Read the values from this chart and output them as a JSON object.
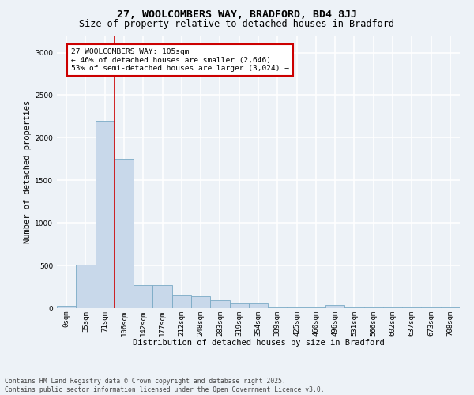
{
  "title": "27, WOOLCOMBERS WAY, BRADFORD, BD4 8JJ",
  "subtitle": "Size of property relative to detached houses in Bradford",
  "xlabel": "Distribution of detached houses by size in Bradford",
  "ylabel": "Number of detached properties",
  "bar_color": "#c8d8ea",
  "bar_edge_color": "#7aaac5",
  "categories": [
    "0sqm",
    "35sqm",
    "71sqm",
    "106sqm",
    "142sqm",
    "177sqm",
    "212sqm",
    "248sqm",
    "283sqm",
    "319sqm",
    "354sqm",
    "389sqm",
    "425sqm",
    "460sqm",
    "496sqm",
    "531sqm",
    "566sqm",
    "602sqm",
    "637sqm",
    "673sqm",
    "708sqm"
  ],
  "values": [
    28,
    510,
    2200,
    1750,
    270,
    265,
    150,
    140,
    90,
    60,
    52,
    5,
    5,
    5,
    38,
    5,
    5,
    5,
    5,
    5,
    5
  ],
  "ylim": [
    0,
    3200
  ],
  "yticks": [
    0,
    500,
    1000,
    1500,
    2000,
    2500,
    3000
  ],
  "property_line_x": 2.5,
  "annotation_text": "27 WOOLCOMBERS WAY: 105sqm\n← 46% of detached houses are smaller (2,646)\n53% of semi-detached houses are larger (3,024) →",
  "annotation_box_facecolor": "#ffffff",
  "annotation_box_edgecolor": "#cc0000",
  "footer_line1": "Contains HM Land Registry data © Crown copyright and database right 2025.",
  "footer_line2": "Contains public sector information licensed under the Open Government Licence v3.0.",
  "bg_color": "#edf2f7",
  "grid_color": "#ffffff",
  "title_fontsize": 9.5,
  "subtitle_fontsize": 8.5,
  "axis_label_fontsize": 7.5,
  "tick_fontsize": 6.5,
  "annotation_fontsize": 6.8,
  "footer_fontsize": 5.8
}
